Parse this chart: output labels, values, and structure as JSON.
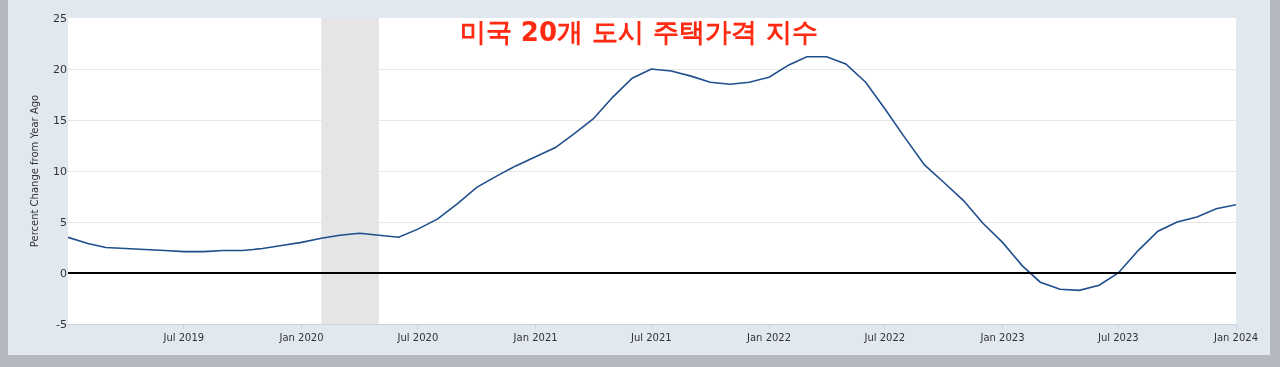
{
  "chart_data": {
    "type": "line",
    "title": "미국 20개 도시 주택가격 지수",
    "ylabel": "Percent Change from Year Ago",
    "x": [
      "2019-01",
      "2019-02",
      "2019-03",
      "2019-04",
      "2019-05",
      "2019-06",
      "2019-07",
      "2019-08",
      "2019-09",
      "2019-10",
      "2019-11",
      "2019-12",
      "2020-01",
      "2020-02",
      "2020-03",
      "2020-04",
      "2020-05",
      "2020-06",
      "2020-07",
      "2020-08",
      "2020-09",
      "2020-10",
      "2020-11",
      "2020-12",
      "2021-01",
      "2021-02",
      "2021-03",
      "2021-04",
      "2021-05",
      "2021-06",
      "2021-07",
      "2021-08",
      "2021-09",
      "2021-10",
      "2021-11",
      "2021-12",
      "2022-01",
      "2022-02",
      "2022-03",
      "2022-04",
      "2022-05",
      "2022-06",
      "2022-07",
      "2022-08",
      "2022-09",
      "2022-10",
      "2022-11",
      "2022-12",
      "2023-01",
      "2023-02",
      "2023-03",
      "2023-04",
      "2023-05",
      "2023-06",
      "2023-07",
      "2023-08",
      "2023-09",
      "2023-10",
      "2023-11",
      "2023-12",
      "2024-01"
    ],
    "series": [
      {
        "color": "#1f4e8c",
        "values": [
          3.5,
          2.9,
          2.5,
          2.4,
          2.3,
          2.2,
          2.1,
          2.1,
          2.2,
          2.2,
          2.4,
          2.7,
          3.0,
          3.4,
          3.7,
          3.9,
          3.7,
          3.5,
          4.3,
          5.3,
          6.8,
          8.4,
          9.5,
          10.5,
          11.4,
          12.3,
          13.6,
          15.1,
          17.2,
          19.1,
          20.0,
          19.8,
          19.3,
          18.7,
          18.5,
          18.7,
          19.2,
          20.4,
          21.2,
          21.2,
          20.5,
          18.7,
          16.1,
          13.3,
          10.6,
          8.9,
          7.1,
          4.9,
          3.0,
          0.7,
          -0.9,
          -1.6,
          -1.7,
          -1.2,
          0.0,
          2.2,
          4.1,
          5.0,
          5.5,
          6.3,
          6.7
        ]
      }
    ],
    "xlim": [
      "2019-01",
      "2024-01"
    ],
    "xticks": [
      {
        "value": "2019-07",
        "label": "Jul 2019"
      },
      {
        "value": "2020-01",
        "label": "Jan 2020"
      },
      {
        "value": "2020-07",
        "label": "Jul 2020"
      },
      {
        "value": "2021-01",
        "label": "Jan 2021"
      },
      {
        "value": "2021-07",
        "label": "Jul 2021"
      },
      {
        "value": "2022-01",
        "label": "Jan 2022"
      },
      {
        "value": "2022-07",
        "label": "Jul 2022"
      },
      {
        "value": "2023-01",
        "label": "Jan 2023"
      },
      {
        "value": "2023-07",
        "label": "Jul 2023"
      },
      {
        "value": "2024-01",
        "label": "Jan 2024"
      }
    ],
    "ylim": [
      -5,
      25
    ],
    "yticks": [
      -5,
      0,
      5,
      10,
      15,
      20,
      25
    ],
    "grid": "y",
    "line_style": "solid",
    "marker": "none",
    "ref_lines": [
      {
        "axis": "y",
        "value": 0,
        "color": "#000000"
      }
    ],
    "bands": [
      {
        "axis": "x",
        "from": "2020-02",
        "to": "2020-05",
        "color": "#e5e5e5"
      }
    ]
  }
}
